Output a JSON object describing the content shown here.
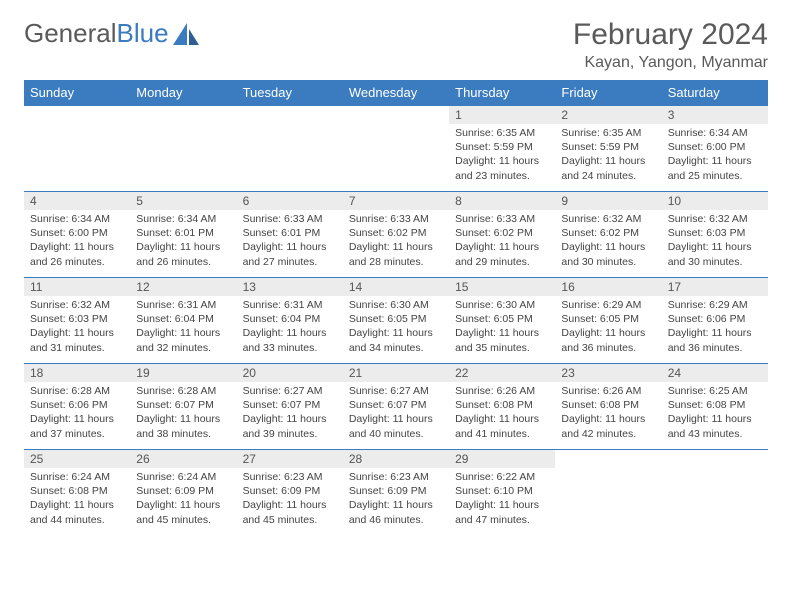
{
  "brand": {
    "part1": "General",
    "part2": "Blue"
  },
  "title": "February 2024",
  "location": "Kayan, Yangon, Myanmar",
  "colors": {
    "header_bg": "#3b7bbf",
    "header_fg": "#ffffff",
    "rule": "#3b7bbf",
    "daynum_bg": "#ececec",
    "text": "#444444"
  },
  "day_names": [
    "Sunday",
    "Monday",
    "Tuesday",
    "Wednesday",
    "Thursday",
    "Friday",
    "Saturday"
  ],
  "first_weekday_index": 4,
  "days": [
    {
      "n": 1,
      "sunrise": "6:35 AM",
      "sunset": "5:59 PM",
      "daylight": "11 hours and 23 minutes."
    },
    {
      "n": 2,
      "sunrise": "6:35 AM",
      "sunset": "5:59 PM",
      "daylight": "11 hours and 24 minutes."
    },
    {
      "n": 3,
      "sunrise": "6:34 AM",
      "sunset": "6:00 PM",
      "daylight": "11 hours and 25 minutes."
    },
    {
      "n": 4,
      "sunrise": "6:34 AM",
      "sunset": "6:00 PM",
      "daylight": "11 hours and 26 minutes."
    },
    {
      "n": 5,
      "sunrise": "6:34 AM",
      "sunset": "6:01 PM",
      "daylight": "11 hours and 26 minutes."
    },
    {
      "n": 6,
      "sunrise": "6:33 AM",
      "sunset": "6:01 PM",
      "daylight": "11 hours and 27 minutes."
    },
    {
      "n": 7,
      "sunrise": "6:33 AM",
      "sunset": "6:02 PM",
      "daylight": "11 hours and 28 minutes."
    },
    {
      "n": 8,
      "sunrise": "6:33 AM",
      "sunset": "6:02 PM",
      "daylight": "11 hours and 29 minutes."
    },
    {
      "n": 9,
      "sunrise": "6:32 AM",
      "sunset": "6:02 PM",
      "daylight": "11 hours and 30 minutes."
    },
    {
      "n": 10,
      "sunrise": "6:32 AM",
      "sunset": "6:03 PM",
      "daylight": "11 hours and 30 minutes."
    },
    {
      "n": 11,
      "sunrise": "6:32 AM",
      "sunset": "6:03 PM",
      "daylight": "11 hours and 31 minutes."
    },
    {
      "n": 12,
      "sunrise": "6:31 AM",
      "sunset": "6:04 PM",
      "daylight": "11 hours and 32 minutes."
    },
    {
      "n": 13,
      "sunrise": "6:31 AM",
      "sunset": "6:04 PM",
      "daylight": "11 hours and 33 minutes."
    },
    {
      "n": 14,
      "sunrise": "6:30 AM",
      "sunset": "6:05 PM",
      "daylight": "11 hours and 34 minutes."
    },
    {
      "n": 15,
      "sunrise": "6:30 AM",
      "sunset": "6:05 PM",
      "daylight": "11 hours and 35 minutes."
    },
    {
      "n": 16,
      "sunrise": "6:29 AM",
      "sunset": "6:05 PM",
      "daylight": "11 hours and 36 minutes."
    },
    {
      "n": 17,
      "sunrise": "6:29 AM",
      "sunset": "6:06 PM",
      "daylight": "11 hours and 36 minutes."
    },
    {
      "n": 18,
      "sunrise": "6:28 AM",
      "sunset": "6:06 PM",
      "daylight": "11 hours and 37 minutes."
    },
    {
      "n": 19,
      "sunrise": "6:28 AM",
      "sunset": "6:07 PM",
      "daylight": "11 hours and 38 minutes."
    },
    {
      "n": 20,
      "sunrise": "6:27 AM",
      "sunset": "6:07 PM",
      "daylight": "11 hours and 39 minutes."
    },
    {
      "n": 21,
      "sunrise": "6:27 AM",
      "sunset": "6:07 PM",
      "daylight": "11 hours and 40 minutes."
    },
    {
      "n": 22,
      "sunrise": "6:26 AM",
      "sunset": "6:08 PM",
      "daylight": "11 hours and 41 minutes."
    },
    {
      "n": 23,
      "sunrise": "6:26 AM",
      "sunset": "6:08 PM",
      "daylight": "11 hours and 42 minutes."
    },
    {
      "n": 24,
      "sunrise": "6:25 AM",
      "sunset": "6:08 PM",
      "daylight": "11 hours and 43 minutes."
    },
    {
      "n": 25,
      "sunrise": "6:24 AM",
      "sunset": "6:08 PM",
      "daylight": "11 hours and 44 minutes."
    },
    {
      "n": 26,
      "sunrise": "6:24 AM",
      "sunset": "6:09 PM",
      "daylight": "11 hours and 45 minutes."
    },
    {
      "n": 27,
      "sunrise": "6:23 AM",
      "sunset": "6:09 PM",
      "daylight": "11 hours and 45 minutes."
    },
    {
      "n": 28,
      "sunrise": "6:23 AM",
      "sunset": "6:09 PM",
      "daylight": "11 hours and 46 minutes."
    },
    {
      "n": 29,
      "sunrise": "6:22 AM",
      "sunset": "6:10 PM",
      "daylight": "11 hours and 47 minutes."
    }
  ],
  "labels": {
    "sunrise": "Sunrise: ",
    "sunset": "Sunset: ",
    "daylight": "Daylight: "
  }
}
